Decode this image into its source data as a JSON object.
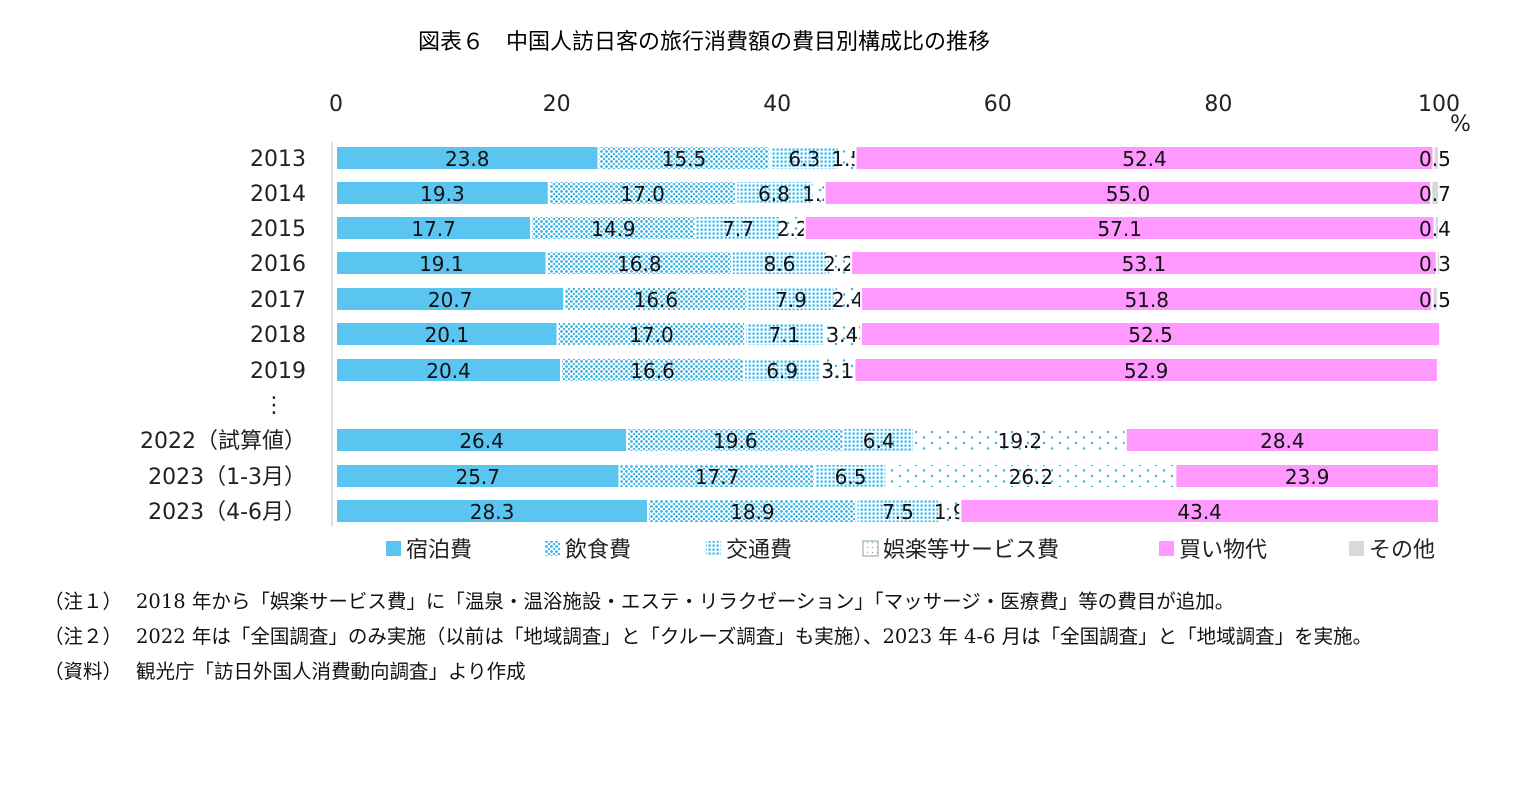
{
  "chart_data": {
    "type": "bar",
    "orientation": "horizontal",
    "stacked": true,
    "title": "図表６　中国人訪日客の旅行消費額の費目別構成比の推移",
    "unit": "%",
    "xlim": [
      0,
      100
    ],
    "xticks": [
      "0",
      "20",
      "40",
      "60",
      "80",
      "100"
    ],
    "ellipsis": "⋮",
    "categories": [
      "2013",
      "2014",
      "2015",
      "2016",
      "2017",
      "2018",
      "2019",
      "2022（試算値）",
      "2023（1-3月）",
      "2023（4-6月）"
    ],
    "legend_position": "bottom",
    "series": [
      {
        "name": "宿泊費",
        "color": "#5bc5f2",
        "pattern": "solid",
        "values": [
          23.8,
          19.3,
          17.7,
          19.1,
          20.7,
          20.1,
          20.4,
          26.4,
          25.7,
          28.3
        ],
        "labels": [
          "23.8",
          "19.3",
          "17.7",
          "19.1",
          "20.7",
          "20.1",
          "20.4",
          "26.4",
          "25.7",
          "28.3"
        ]
      },
      {
        "name": "飲食費",
        "color": "#5bc5f2",
        "pattern": "dense-dots",
        "values": [
          15.5,
          17.0,
          14.9,
          16.8,
          16.6,
          17.0,
          16.6,
          19.6,
          17.7,
          18.9
        ],
        "labels": [
          "15.5",
          "17.0",
          "14.9",
          "16.8",
          "16.6",
          "17.0",
          "16.6",
          "19.6",
          "17.7",
          "18.9"
        ]
      },
      {
        "name": "交通費",
        "color": "#5bc5f2",
        "pattern": "grid-dots",
        "values": [
          6.3,
          6.8,
          7.7,
          8.6,
          7.9,
          7.1,
          6.9,
          6.4,
          6.5,
          7.5
        ],
        "labels": [
          "6.3",
          "6.8",
          "7.7",
          "8.6",
          "7.9",
          "7.1",
          "6.9",
          "6.4",
          "6.5",
          "7.5"
        ]
      },
      {
        "name": "娯楽等サービス費",
        "color": "#5bc5f2",
        "pattern": "sparse-dots",
        "values": [
          1.5,
          1.2,
          2.2,
          2.2,
          2.4,
          3.4,
          3.1,
          19.2,
          26.2,
          1.9
        ],
        "labels": [
          "1.5",
          "1.2",
          "2.2",
          "2.2",
          "2.4",
          "3.4",
          "3.1",
          "19.2",
          "26.2",
          "1.9"
        ]
      },
      {
        "name": "買い物代",
        "color": "#ff99ff",
        "pattern": "solid",
        "values": [
          52.4,
          55.0,
          57.1,
          53.1,
          51.8,
          52.5,
          52.9,
          28.4,
          23.9,
          43.4
        ],
        "labels": [
          "52.4",
          "55.0",
          "57.1",
          "53.1",
          "51.8",
          "52.5",
          "52.9",
          "28.4",
          "23.9",
          "43.4"
        ]
      },
      {
        "name": "その他",
        "color": "#d9d9d9",
        "pattern": "solid",
        "values": [
          0.5,
          0.7,
          0.4,
          0.3,
          0.5,
          null,
          null,
          null,
          null,
          null
        ],
        "labels": [
          "0.5",
          "0.7",
          "0.4",
          "0.3",
          "0.5",
          "",
          "",
          "",
          "",
          ""
        ]
      }
    ]
  },
  "notes": [
    {
      "label": "（注１）",
      "text": "2018 年から「娯楽サービス費」に「温泉・温浴施設・エステ・リラクゼーション」「マッサージ・医療費」等の費目が追加。"
    },
    {
      "label": "（注２）",
      "text": "2022 年は「全国調査」のみ実施（以前は「地域調査」と「クルーズ調査」も実施）、2023 年 4-6 月は「全国調査」と「地域調査」を実施。"
    },
    {
      "label": "（資料）",
      "text": "観光庁「訪日外国人消費動向調査」より作成"
    }
  ]
}
